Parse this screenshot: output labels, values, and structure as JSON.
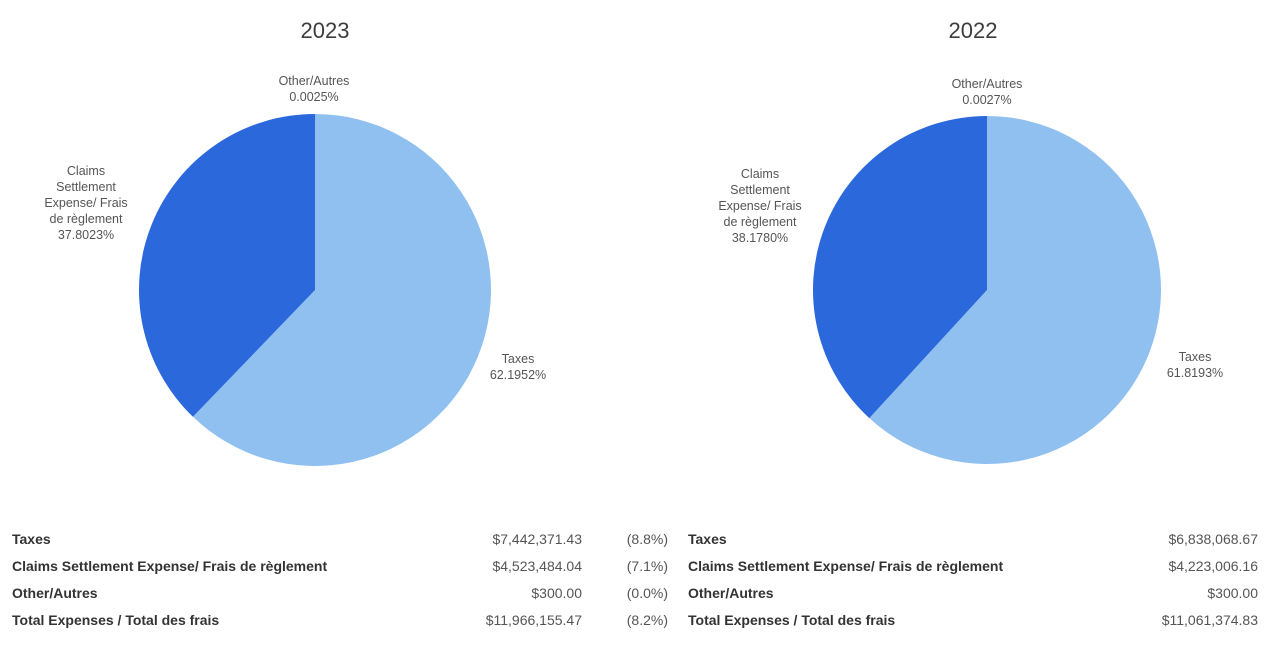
{
  "chart_data": [
    {
      "type": "pie",
      "title": "2023",
      "slices": [
        {
          "name": "Taxes",
          "value": 62.1952,
          "label": "62.1952%",
          "color": "#90c0f0"
        },
        {
          "name": "Other/Autres",
          "value": 0.0025,
          "label": "0.0025%",
          "color": "#1f5bc9"
        },
        {
          "name": "Claims Settlement Expense/ Frais de règlement",
          "value": 37.8023,
          "label": "37.8023%",
          "color": "#2a68db"
        }
      ],
      "slice_label_lines": {
        "taxes": [
          "Taxes"
        ],
        "other": [
          "Other/Autres"
        ],
        "claims": [
          "Claims",
          "Settlement",
          "Expense/ Frais",
          "de règlement"
        ]
      }
    },
    {
      "type": "pie",
      "title": "2022",
      "slices": [
        {
          "name": "Taxes",
          "value": 61.8193,
          "label": "61.8193%",
          "color": "#90c0f0"
        },
        {
          "name": "Other/Autres",
          "value": 0.0027,
          "label": "0.0027%",
          "color": "#1f5bc9"
        },
        {
          "name": "Claims Settlement Expense/ Frais de règlement",
          "value": 38.178,
          "label": "38.1780%",
          "color": "#2a68db"
        }
      ],
      "slice_label_lines": {
        "taxes": [
          "Taxes"
        ],
        "other": [
          "Other/Autres"
        ],
        "claims": [
          "Claims",
          "Settlement",
          "Expense/ Frais",
          "de règlement"
        ]
      }
    }
  ],
  "tables": {
    "y2023": [
      {
        "label": "Taxes",
        "amount": "$7,442,371.43",
        "pct": "(8.8%)"
      },
      {
        "label": "Claims Settlement Expense/ Frais de règlement",
        "amount": "$4,523,484.04",
        "pct": "(7.1%)"
      },
      {
        "label": "Other/Autres",
        "amount": "$300.00",
        "pct": "(0.0%)"
      },
      {
        "label": "Total Expenses / Total des frais",
        "amount": "$11,966,155.47",
        "pct": "(8.2%)"
      }
    ],
    "y2022": [
      {
        "label": "Taxes",
        "amount": "$6,838,068.67"
      },
      {
        "label": "Claims Settlement Expense/ Frais de règlement",
        "amount": "$4,223,006.16"
      },
      {
        "label": "Other/Autres",
        "amount": "$300.00"
      },
      {
        "label": "Total Expenses / Total des frais",
        "amount": "$11,061,374.83"
      }
    ]
  }
}
